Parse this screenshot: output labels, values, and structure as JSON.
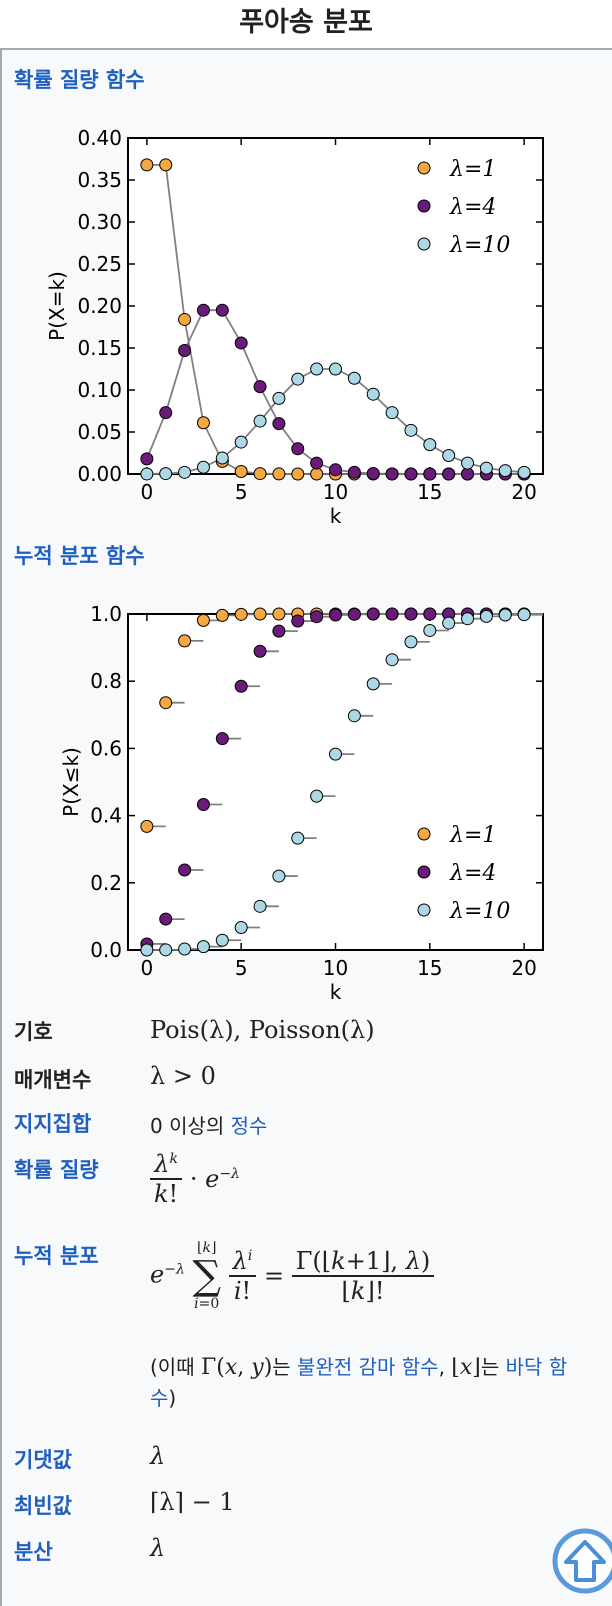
{
  "page_title": "푸아송 분포",
  "sections": {
    "pmf_label": "확률 질량 함수",
    "cdf_label": "누적 분포 함수"
  },
  "chart_data": [
    {
      "type": "line",
      "xlabel": "k",
      "ylabel": "P(X=k)",
      "xlim": [
        -1,
        21
      ],
      "ylim": [
        0,
        0.4
      ],
      "xticks": [
        "0",
        "5",
        "10",
        "15",
        "20"
      ],
      "yticks": [
        "0.00",
        "0.05",
        "0.10",
        "0.15",
        "0.20",
        "0.25",
        "0.30",
        "0.35",
        "0.40"
      ],
      "legend_position": "top-right",
      "series": [
        {
          "name": "λ=1",
          "color": "#f5a742",
          "x": [
            0,
            1,
            2,
            3,
            4,
            5,
            6,
            7,
            8,
            9,
            10,
            11,
            12,
            13,
            14,
            15,
            16,
            17,
            18,
            19,
            20
          ],
          "y": [
            0.368,
            0.368,
            0.184,
            0.061,
            0.015,
            0.003,
            0.0005,
            0.0001,
            0,
            0,
            0,
            0,
            0,
            0,
            0,
            0,
            0,
            0,
            0,
            0,
            0
          ]
        },
        {
          "name": "λ=4",
          "color": "#6a1b7a",
          "x": [
            0,
            1,
            2,
            3,
            4,
            5,
            6,
            7,
            8,
            9,
            10,
            11,
            12,
            13,
            14,
            15,
            16,
            17,
            18,
            19,
            20
          ],
          "y": [
            0.018,
            0.073,
            0.147,
            0.195,
            0.195,
            0.156,
            0.104,
            0.06,
            0.03,
            0.013,
            0.005,
            0.002,
            0.0006,
            0.0002,
            0.0001,
            0,
            0,
            0,
            0,
            0,
            0
          ]
        },
        {
          "name": "λ=10",
          "color": "#acd8e6",
          "x": [
            0,
            1,
            2,
            3,
            4,
            5,
            6,
            7,
            8,
            9,
            10,
            11,
            12,
            13,
            14,
            15,
            16,
            17,
            18,
            19,
            20
          ],
          "y": [
            5e-05,
            0.0005,
            0.002,
            0.008,
            0.019,
            0.038,
            0.063,
            0.09,
            0.113,
            0.125,
            0.125,
            0.114,
            0.095,
            0.073,
            0.052,
            0.035,
            0.022,
            0.013,
            0.007,
            0.004,
            0.002
          ]
        }
      ]
    },
    {
      "type": "scatter",
      "xlabel": "k",
      "ylabel": "P(X≤k)",
      "xlim": [
        -1,
        21
      ],
      "ylim": [
        0,
        1.0
      ],
      "xticks": [
        "0",
        "5",
        "10",
        "15",
        "20"
      ],
      "yticks": [
        "0.0",
        "0.2",
        "0.4",
        "0.6",
        "0.8",
        "1.0"
      ],
      "legend_position": "bottom-right",
      "series": [
        {
          "name": "λ=1",
          "color": "#f5a742",
          "x": [
            0,
            1,
            2,
            3,
            4,
            5,
            6,
            7,
            8,
            9,
            10,
            11,
            12,
            13,
            14,
            15,
            16,
            17,
            18,
            19,
            20
          ],
          "y": [
            0.368,
            0.736,
            0.92,
            0.981,
            0.996,
            0.999,
            1,
            1,
            1,
            1,
            1,
            1,
            1,
            1,
            1,
            1,
            1,
            1,
            1,
            1,
            1
          ]
        },
        {
          "name": "λ=4",
          "color": "#6a1b7a",
          "x": [
            0,
            1,
            2,
            3,
            4,
            5,
            6,
            7,
            8,
            9,
            10,
            11,
            12,
            13,
            14,
            15,
            16,
            17,
            18,
            19,
            20
          ],
          "y": [
            0.018,
            0.092,
            0.238,
            0.433,
            0.629,
            0.785,
            0.889,
            0.949,
            0.979,
            0.992,
            0.997,
            0.999,
            1,
            1,
            1,
            1,
            1,
            1,
            1,
            1,
            1
          ]
        },
        {
          "name": "λ=10",
          "color": "#acd8e6",
          "x": [
            0,
            1,
            2,
            3,
            4,
            5,
            6,
            7,
            8,
            9,
            10,
            11,
            12,
            13,
            14,
            15,
            16,
            17,
            18,
            19,
            20
          ],
          "y": [
            5e-05,
            0.0005,
            0.003,
            0.01,
            0.029,
            0.067,
            0.13,
            0.22,
            0.333,
            0.458,
            0.583,
            0.697,
            0.792,
            0.864,
            0.917,
            0.951,
            0.973,
            0.986,
            0.993,
            0.997,
            0.998
          ]
        }
      ]
    }
  ],
  "rows": {
    "notation": {
      "label": "기호",
      "value": "Pois(λ), Poisson(λ)"
    },
    "parameters": {
      "label": "매개변수",
      "value": "λ > 0"
    },
    "support": {
      "label": "지지집합",
      "value_prefix": "0 이상의 ",
      "link": "정수"
    },
    "pmf": {
      "label": "확률 질량"
    },
    "cdf": {
      "label": "누적 분포",
      "note_open": "(이때 ",
      "note_gamma_link": "불완전 감마 함수",
      "note_mid": "는 ",
      "note_sep": ", ",
      "note_floor_link": "바닥 함수",
      "note_close": ")"
    },
    "mean": {
      "label": "기댓값",
      "value": "λ"
    },
    "mode": {
      "label": "최빈값",
      "value": "⌈λ⌉ − 1"
    },
    "variance": {
      "label": "분산",
      "value": "λ"
    }
  },
  "icons": {
    "scroll_top": "arrow-up-circle-icon"
  }
}
